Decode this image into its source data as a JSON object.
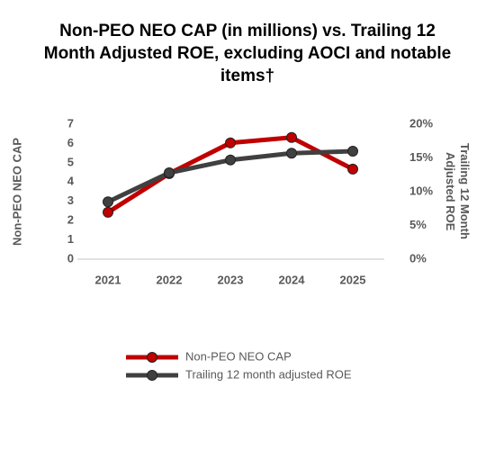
{
  "chart_data": {
    "type": "line",
    "title": "Non-PEO NEO CAP (in millions) vs. Trailing 12 Month Adjusted ROE, excluding AOCI and notable items†",
    "ylabel": "Non-PEO NEO CAP",
    "y2label": "Trailing 12 Month Adjusted ROE",
    "categories": [
      "2021",
      "2022",
      "2023",
      "2024",
      "2025"
    ],
    "series": [
      {
        "name": "Non-PEO NEO CAP",
        "color": "#c00000",
        "values": [
          2.43,
          4.44,
          6.03,
          6.31,
          4.67
        ]
      },
      {
        "name": "Trailing 12 month adjusted ROE",
        "color": "#404040",
        "axis": "y2",
        "values": [
          8.5,
          12.8,
          14.7,
          15.7,
          16.0
        ]
      }
    ],
    "ylim": [
      0,
      7
    ],
    "yticks": [
      0,
      1,
      2,
      3,
      4,
      5,
      6,
      7
    ],
    "y2lim": [
      0,
      20
    ],
    "y2ticks": [
      {
        "value": 0,
        "label": "0%"
      },
      {
        "value": 5,
        "label": "5%"
      },
      {
        "value": 10,
        "label": "10%"
      },
      {
        "value": 15,
        "label": "15%"
      },
      {
        "value": 20,
        "label": "20%"
      }
    ],
    "grid": false,
    "legend": "bottom"
  }
}
